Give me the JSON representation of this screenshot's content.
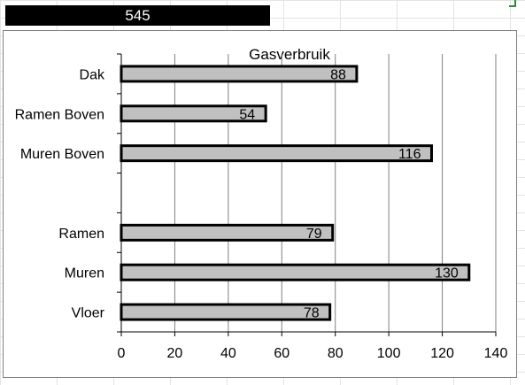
{
  "total_value": "545",
  "chart_data": {
    "type": "bar",
    "orientation": "horizontal",
    "title": "Gasverbruik",
    "categories": [
      "Dak",
      "Ramen Boven",
      "Muren Boven",
      "",
      "Ramen",
      "Muren",
      "Vloer"
    ],
    "values": [
      88,
      54,
      116,
      null,
      79,
      130,
      78
    ],
    "data_labels": [
      "88",
      "54",
      "116",
      "",
      "79",
      "130",
      "78"
    ],
    "xlim": [
      0,
      140
    ],
    "xticks": [
      0,
      20,
      40,
      60,
      80,
      100,
      120,
      140
    ],
    "xtick_labels": [
      "0",
      "20",
      "40",
      "60",
      "80",
      "100",
      "120",
      "140"
    ],
    "grid": "vertical",
    "legend": "none",
    "bar_color": "#c0c0c0",
    "bar_border_color": "#000000"
  }
}
